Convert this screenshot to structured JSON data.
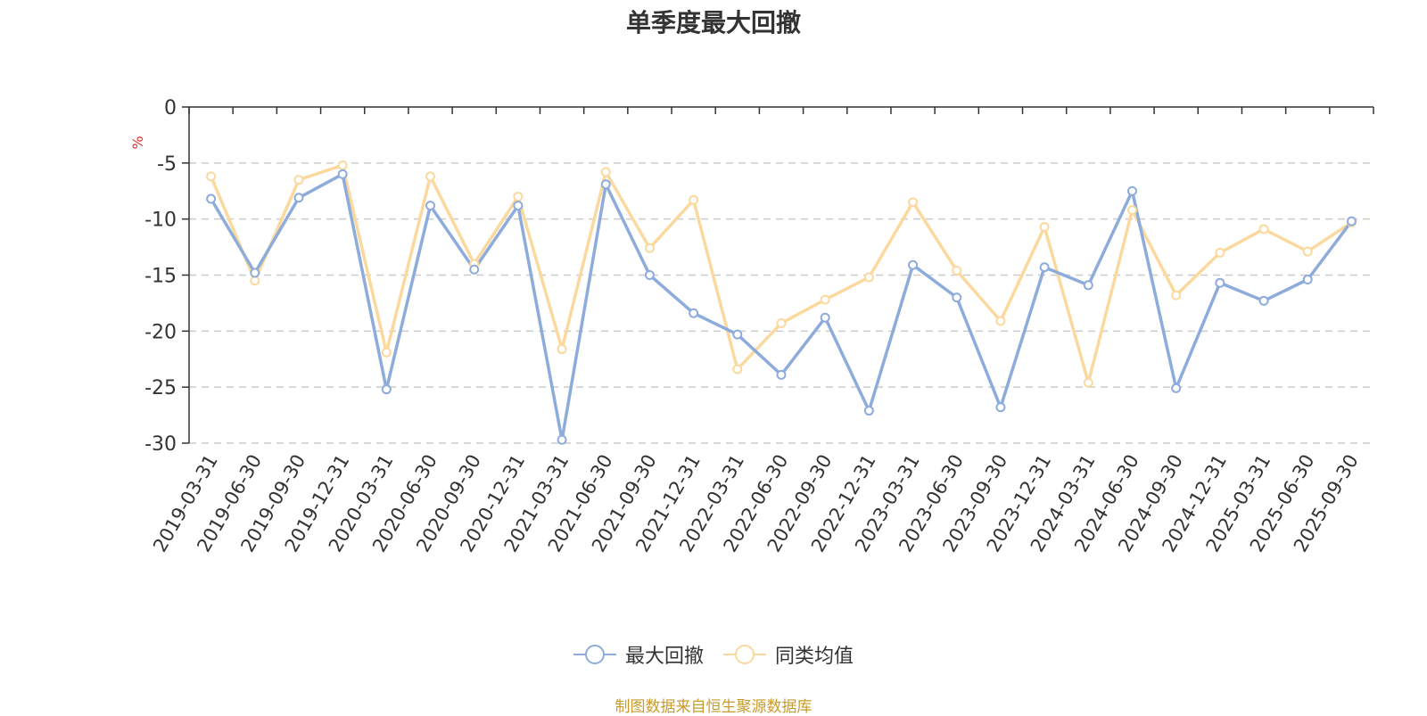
{
  "chart_data": {
    "type": "line",
    "title": "单季度最大回撤",
    "ylabel": "%",
    "ylim": [
      -30,
      0
    ],
    "yticks": [
      0,
      -5,
      -10,
      -15,
      -20,
      -25,
      -30
    ],
    "grid": true,
    "legend_position": "bottom",
    "categories": [
      "2019-03-31",
      "2019-06-30",
      "2019-09-30",
      "2019-12-31",
      "2020-03-31",
      "2020-06-30",
      "2020-09-30",
      "2020-12-31",
      "2021-03-31",
      "2021-06-30",
      "2021-09-30",
      "2021-12-31",
      "2022-03-31",
      "2022-06-30",
      "2022-09-30",
      "2022-12-31",
      "2023-03-31",
      "2023-06-30",
      "2023-09-30",
      "2023-12-31",
      "2024-03-31",
      "2024-06-30",
      "2024-09-30",
      "2024-12-31",
      "2025-03-31",
      "2025-06-30",
      "2025-09-30"
    ],
    "series": [
      {
        "name": "最大回撤",
        "color": "#8eacdb",
        "values": [
          -8.2,
          -14.8,
          -8.1,
          -6.0,
          -25.2,
          -8.8,
          -14.5,
          -8.8,
          -29.7,
          -6.9,
          -15.0,
          -18.4,
          -20.3,
          -23.9,
          -18.8,
          -27.1,
          -14.1,
          -17.0,
          -26.8,
          -14.3,
          -15.9,
          -7.5,
          -25.1,
          -15.7,
          -17.3,
          -15.4,
          -10.2
        ]
      },
      {
        "name": "同类均值",
        "color": "#fbd99e",
        "values": [
          -6.2,
          -15.5,
          -6.5,
          -5.2,
          -21.9,
          -6.2,
          -14.0,
          -8.0,
          -21.6,
          -5.8,
          -12.6,
          -8.3,
          -23.4,
          -19.3,
          -17.2,
          -15.2,
          -8.5,
          -14.6,
          -19.1,
          -10.7,
          -24.6,
          -9.2,
          -16.8,
          -13.0,
          -10.9,
          -12.9,
          -10.3
        ]
      }
    ]
  },
  "footer": {
    "source_text": "制图数据来自恒生聚源数据库",
    "source_color": "#c89b2a"
  },
  "axis_colors": {
    "y_unit": "#e03030",
    "grid": "#cccccc",
    "axis": "#333333"
  }
}
